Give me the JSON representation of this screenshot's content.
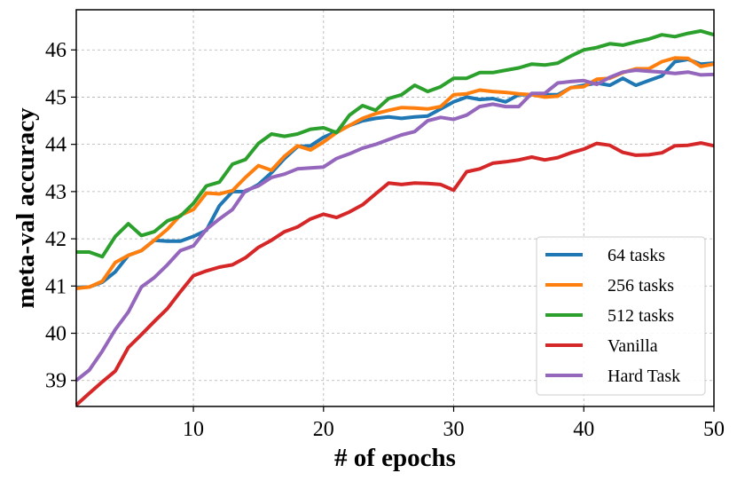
{
  "chart_data": {
    "type": "line",
    "title": "",
    "xlabel": "# of epochs",
    "ylabel": "meta-val accuracy",
    "xlim": [
      1,
      50
    ],
    "ylim": [
      38.45,
      46.85
    ],
    "xticks": [
      10,
      20,
      30,
      40,
      50
    ],
    "yticks": [
      39,
      40,
      41,
      42,
      43,
      44,
      45,
      46
    ],
    "grid": true,
    "legend_position": "lower-right",
    "x": [
      1,
      2,
      3,
      4,
      5,
      6,
      7,
      8,
      9,
      10,
      11,
      12,
      13,
      14,
      15,
      16,
      17,
      18,
      19,
      20,
      21,
      22,
      23,
      24,
      25,
      26,
      27,
      28,
      29,
      30,
      31,
      32,
      33,
      34,
      35,
      36,
      37,
      38,
      39,
      40,
      41,
      42,
      43,
      44,
      45,
      46,
      47,
      48,
      49,
      50
    ],
    "series": [
      {
        "name": "64 tasks",
        "color": "#1f77b4",
        "values": [
          40.97,
          40.98,
          41.08,
          41.3,
          41.65,
          41.75,
          41.97,
          41.95,
          41.95,
          42.05,
          42.18,
          42.7,
          43.0,
          43.0,
          43.15,
          43.4,
          43.7,
          43.95,
          43.97,
          44.15,
          44.27,
          44.4,
          44.5,
          44.55,
          44.58,
          44.55,
          44.58,
          44.6,
          44.75,
          44.9,
          45.0,
          44.95,
          44.97,
          44.9,
          45.05,
          45.05,
          45.05,
          45.05,
          45.2,
          45.25,
          45.3,
          45.25,
          45.4,
          45.25,
          45.35,
          45.45,
          45.75,
          45.8,
          45.7,
          45.72
        ]
      },
      {
        "name": "256 tasks",
        "color": "#ff7f0e",
        "values": [
          40.95,
          40.98,
          41.1,
          41.5,
          41.65,
          41.75,
          41.97,
          42.2,
          42.5,
          42.62,
          42.97,
          42.95,
          43.02,
          43.3,
          43.55,
          43.45,
          43.75,
          43.97,
          43.88,
          44.05,
          44.25,
          44.4,
          44.55,
          44.65,
          44.72,
          44.78,
          44.77,
          44.75,
          44.8,
          45.05,
          45.07,
          45.15,
          45.12,
          45.1,
          45.07,
          45.05,
          45.0,
          45.02,
          45.2,
          45.22,
          45.38,
          45.4,
          45.52,
          45.6,
          45.6,
          45.75,
          45.83,
          45.82,
          45.65,
          45.7
        ]
      },
      {
        "name": "512 tasks",
        "color": "#2ca02c",
        "values": [
          41.72,
          41.72,
          41.62,
          42.05,
          42.32,
          42.07,
          42.15,
          42.38,
          42.48,
          42.75,
          43.12,
          43.2,
          43.58,
          43.68,
          44.02,
          44.22,
          44.17,
          44.22,
          44.32,
          44.35,
          44.25,
          44.62,
          44.82,
          44.72,
          44.97,
          45.05,
          45.25,
          45.12,
          45.22,
          45.4,
          45.4,
          45.52,
          45.52,
          45.57,
          45.62,
          45.7,
          45.68,
          45.72,
          45.87,
          46.0,
          46.05,
          46.13,
          46.1,
          46.17,
          46.23,
          46.32,
          46.28,
          46.35,
          46.4,
          46.32
        ]
      },
      {
        "name": "Vanilla",
        "color": "#d62728",
        "values": [
          38.48,
          38.73,
          38.97,
          39.2,
          39.7,
          39.97,
          40.25,
          40.52,
          40.88,
          41.22,
          41.32,
          41.4,
          41.45,
          41.6,
          41.82,
          41.97,
          42.15,
          42.25,
          42.42,
          42.52,
          42.45,
          42.57,
          42.72,
          42.95,
          43.18,
          43.15,
          43.18,
          43.17,
          43.15,
          43.03,
          43.42,
          43.48,
          43.6,
          43.63,
          43.67,
          43.73,
          43.67,
          43.72,
          43.82,
          43.9,
          44.02,
          43.98,
          43.83,
          43.77,
          43.78,
          43.82,
          43.97,
          43.98,
          44.03,
          43.97
        ]
      },
      {
        "name": "Hard Task",
        "color": "#9467bd",
        "values": [
          39.0,
          39.22,
          39.62,
          40.08,
          40.45,
          40.98,
          41.18,
          41.45,
          41.75,
          41.85,
          42.2,
          42.42,
          42.62,
          43.02,
          43.12,
          43.3,
          43.37,
          43.48,
          43.5,
          43.52,
          43.7,
          43.8,
          43.92,
          44.0,
          44.1,
          44.2,
          44.27,
          44.5,
          44.57,
          44.53,
          44.62,
          44.8,
          44.85,
          44.8,
          44.8,
          45.08,
          45.08,
          45.3,
          45.33,
          45.35,
          45.27,
          45.42,
          45.53,
          45.57,
          45.55,
          45.53,
          45.5,
          45.53,
          45.47,
          45.48
        ]
      }
    ]
  }
}
